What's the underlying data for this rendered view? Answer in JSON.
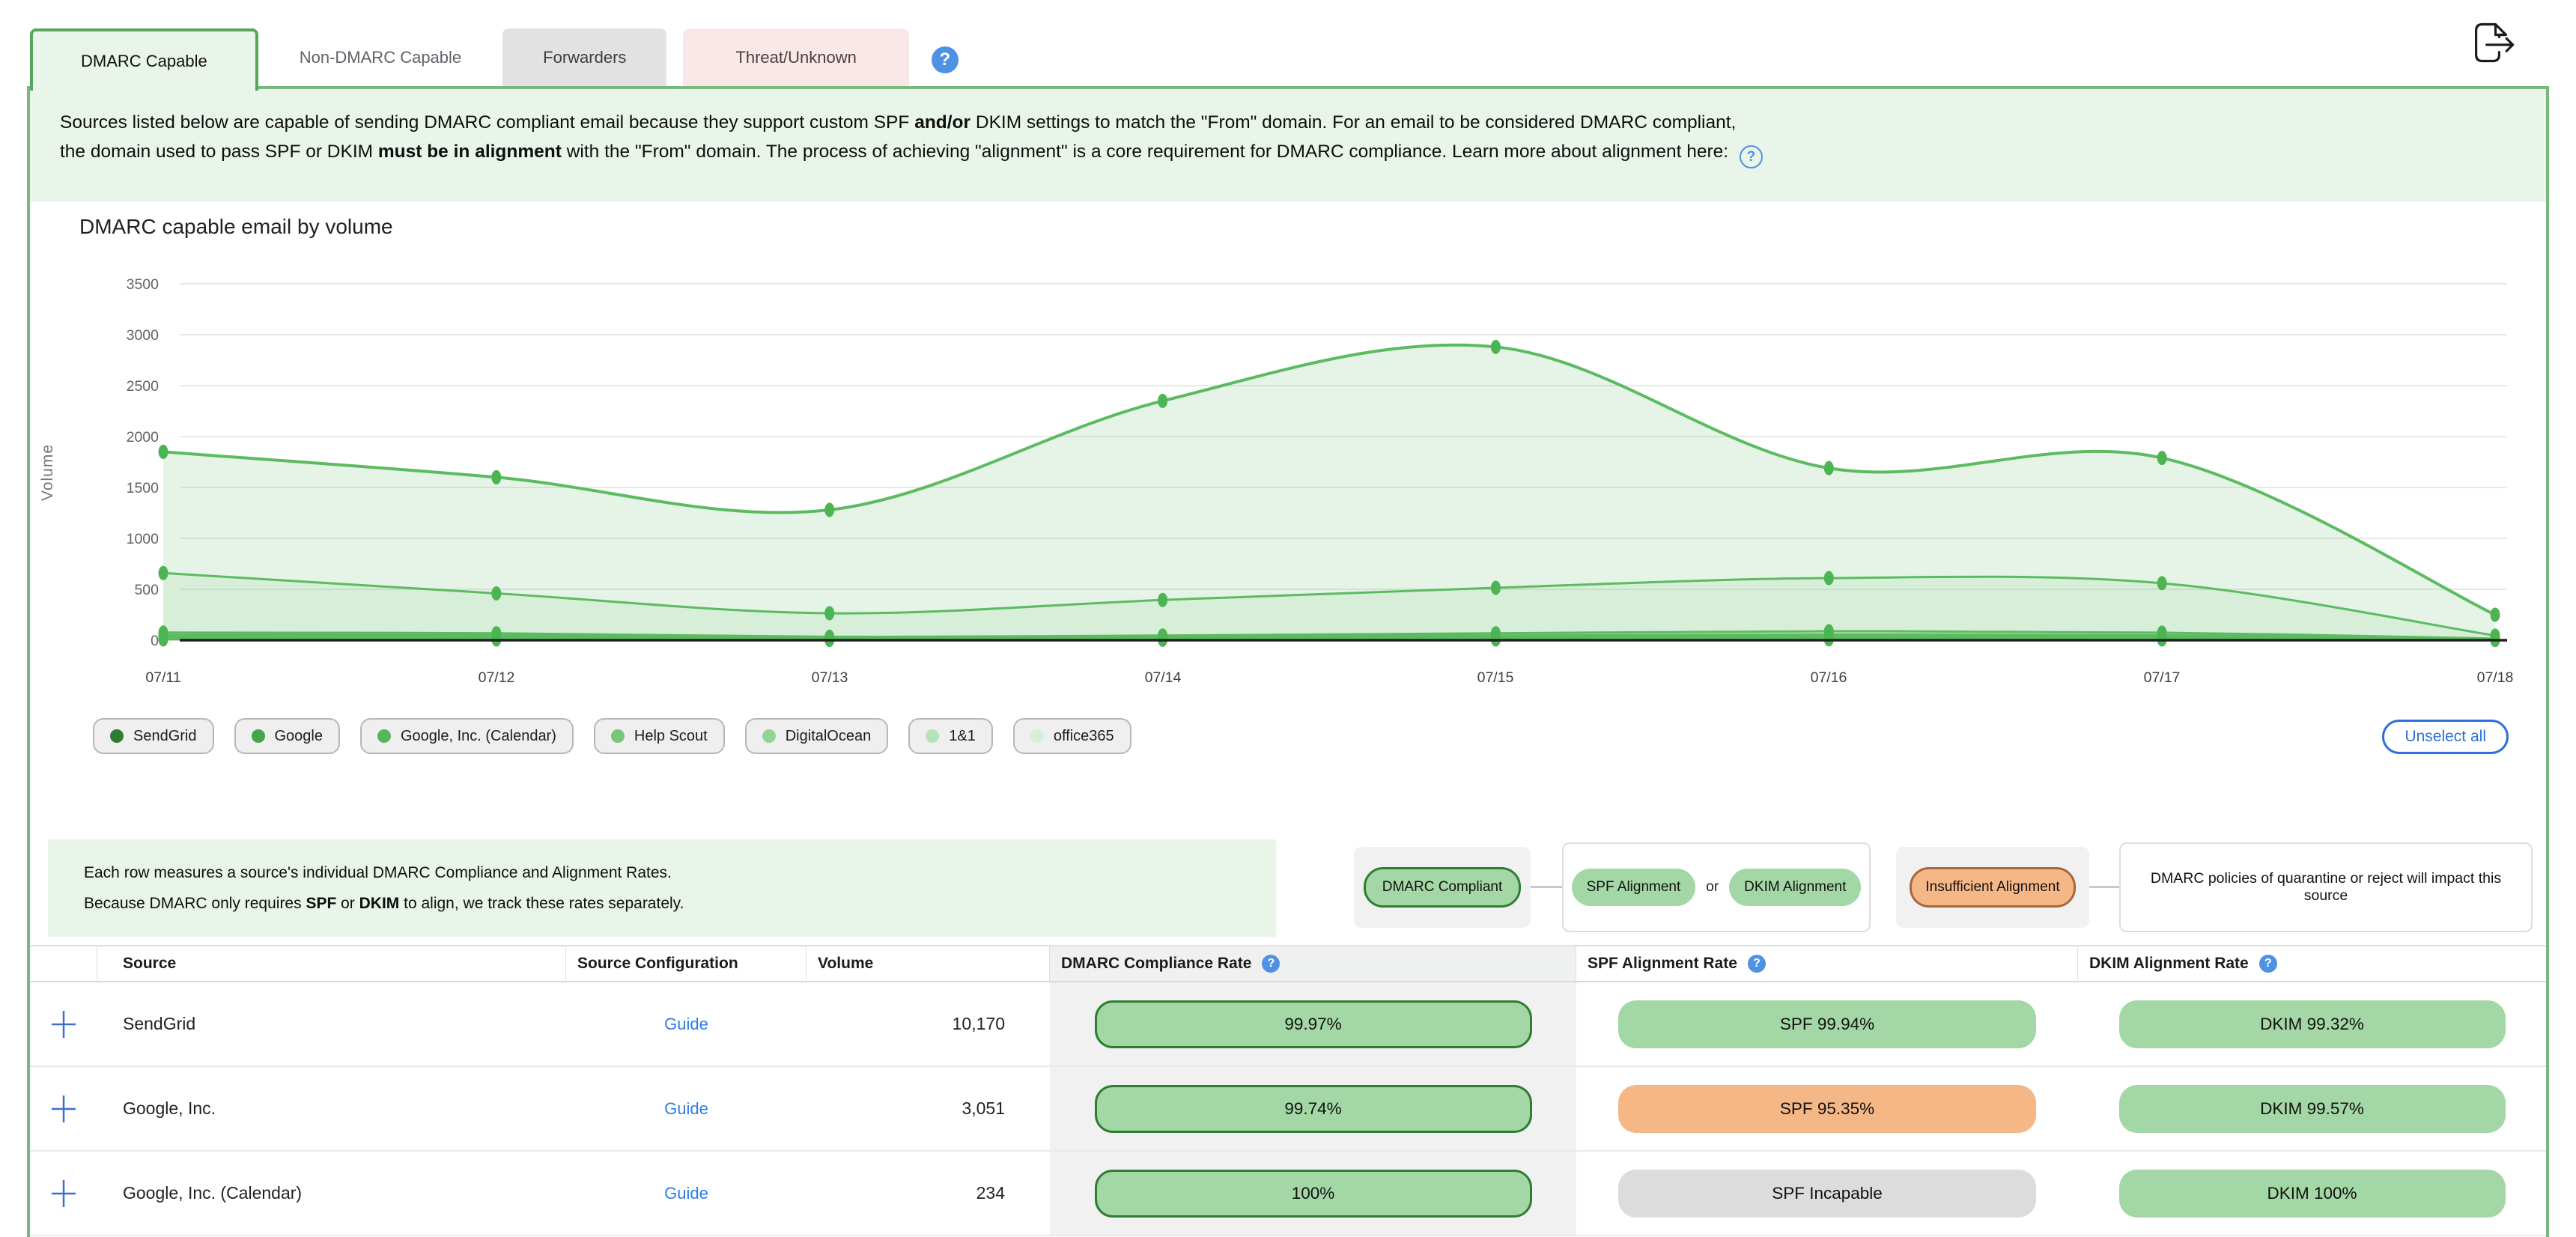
{
  "tabs": {
    "items": [
      {
        "label": "DMARC Capable",
        "state": "active"
      },
      {
        "label": "Non-DMARC Capable",
        "state": "normal"
      },
      {
        "label": "Forwarders",
        "state": "gray"
      },
      {
        "label": "Threat/Unknown",
        "state": "pink"
      }
    ],
    "help_icon": "question-mark-circle"
  },
  "icons": {
    "export": "export-document-arrow",
    "help_solid": "question-mark-circle-solid",
    "help_outline": "question-mark-circle-outline",
    "expand_row": "plus"
  },
  "description": {
    "s1": "Sources listed below are capable of sending DMARC compliant email because they support custom SPF ",
    "s2": "and/or",
    "s3": " DKIM settings to match the \"From\" domain. For an email to be considered DMARC compliant,",
    "s4": "the domain used to pass SPF or DKIM ",
    "s5": "must be in alignment",
    "s6": " with the \"From\" domain. The process of achieving \"alignment\" is a core requirement for DMARC compliance. Learn more about alignment here:"
  },
  "chart": {
    "title": "DMARC capable email by volume",
    "ylabel": "Volume",
    "yticks": [
      "3500",
      "3000",
      "2500",
      "2000",
      "1500",
      "1000",
      "500",
      "0"
    ],
    "xticks": [
      "07/11",
      "07/12",
      "07/13",
      "07/14",
      "07/15",
      "07/16",
      "07/17",
      "07/18"
    ],
    "legend": [
      {
        "label": "SendGrid",
        "color": "#2f7d33"
      },
      {
        "label": "Google",
        "color": "#44a648"
      },
      {
        "label": "Google, Inc. (Calendar)",
        "color": "#57b55b"
      },
      {
        "label": "Help Scout",
        "color": "#77c77b"
      },
      {
        "label": "DigitalOcean",
        "color": "#93d496"
      },
      {
        "label": "1&1",
        "color": "#b4e3b6"
      },
      {
        "label": "office365",
        "color": "#d3efd4"
      }
    ],
    "unselect_label": "Unselect all"
  },
  "chart_data": {
    "type": "area",
    "stacked": true,
    "title": "DMARC capable email by volume",
    "xlabel": "",
    "ylabel": "Volume",
    "x": [
      "07/11",
      "07/12",
      "07/13",
      "07/14",
      "07/15",
      "07/16",
      "07/17",
      "07/18"
    ],
    "ylim": [
      0,
      3500
    ],
    "ytick_step": 500,
    "grid": true,
    "legend_position": "bottom",
    "series": [
      {
        "name": "SendGrid",
        "values": [
          1190,
          1140,
          1015,
          1955,
          2365,
          1080,
          1230,
          205
        ]
      },
      {
        "name": "Google",
        "values": [
          585,
          392,
          231,
          349,
          447,
          522,
          486,
          29
        ]
      },
      {
        "name": "Google, Inc. (Calendar)",
        "values": [
          23,
          21,
          12,
          15,
          22,
          31,
          25,
          5
        ]
      },
      {
        "name": "Help Scout",
        "values": [
          18,
          17,
          8,
          11,
          17,
          21,
          18,
          4
        ]
      },
      {
        "name": "DigitalOcean",
        "values": [
          15,
          14,
          6,
          9,
          13,
          16,
          14,
          3
        ]
      },
      {
        "name": "1&1",
        "values": [
          11,
          9,
          5,
          6,
          9,
          11,
          10,
          2
        ]
      },
      {
        "name": "office365",
        "values": [
          8,
          7,
          3,
          5,
          7,
          9,
          7,
          2
        ]
      }
    ]
  },
  "note": {
    "line1": "Each row measures a source's individual DMARC Compliance and Alignment Rates.",
    "l2s1": "Because DMARC only requires ",
    "l2s2": "SPF",
    "l2s3": " or ",
    "l2s4": "DKIM",
    "l2s5": " to align, we track these rates separately."
  },
  "legend_key": {
    "compliant": "DMARC Compliant",
    "spf": "SPF Alignment",
    "or": "or",
    "dkim": "DKIM Alignment",
    "insufficient": "Insufficient Alignment",
    "impact": "DMARC policies of quarantine or reject will impact this source"
  },
  "table": {
    "headers": [
      "Source",
      "Source Configuration",
      "Volume",
      "DMARC Compliance Rate",
      "SPF Alignment Rate",
      "DKIM Alignment Rate"
    ],
    "rows": [
      {
        "source": "SendGrid",
        "config_link": "Guide",
        "volume": "10,170",
        "compliance": "99.97%",
        "spf": "SPF 99.94%",
        "spf_status": "good",
        "dkim": "DKIM 99.32%",
        "dkim_status": "good"
      },
      {
        "source": "Google, Inc.",
        "config_link": "Guide",
        "volume": "3,051",
        "compliance": "99.74%",
        "spf": "SPF 95.35%",
        "spf_status": "warn",
        "dkim": "DKIM 99.57%",
        "dkim_status": "good"
      },
      {
        "source": "Google, Inc. (Calendar)",
        "config_link": "Guide",
        "volume": "234",
        "compliance": "100%",
        "spf": "SPF Incapable",
        "spf_status": "incapable",
        "dkim": "DKIM 100%",
        "dkim_status": "good"
      }
    ]
  },
  "colors": {
    "panel_border": "#7ab77e",
    "active_tab_bg": "#e9f5e9",
    "chart_line": "#5cbb60",
    "good_pill": "#a3d7a5",
    "good_border": "#2f7d32",
    "warn_pill": "#f6b787",
    "warn_border": "#a3683e",
    "incapable_pill": "#dcdcdc",
    "link_blue": "#2b7de9",
    "action_blue": "#2e6fdb"
  }
}
